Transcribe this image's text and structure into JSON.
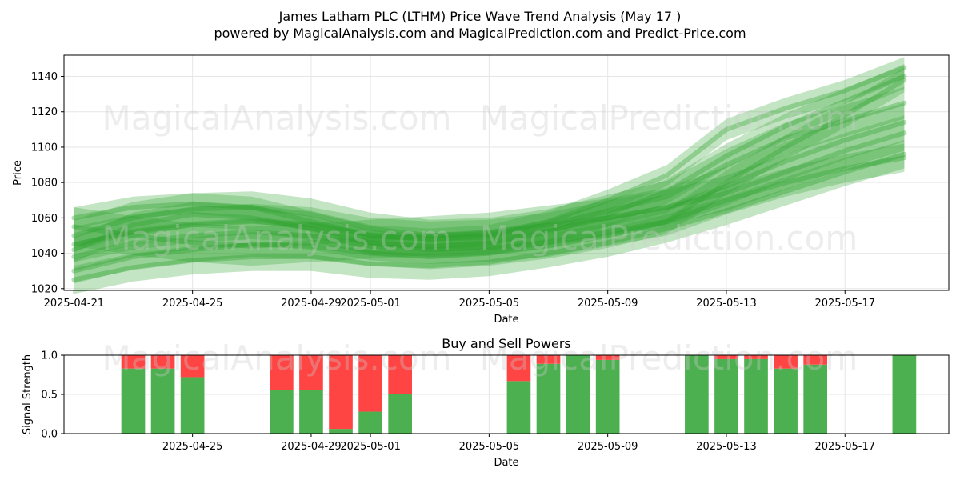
{
  "header": {
    "title": "James Latham PLC (LTHM) Price Wave Trend Analysis (May 17 )",
    "subtitle": "powered by MagicalAnalysis.com and MagicalPrediction.com and Predict-Price.com"
  },
  "watermarks": [
    "MagicalAnalysis.com",
    "MagicalPrediction.com"
  ],
  "colors": {
    "wave": "#2ca02c",
    "buy": "#4caf50",
    "sell": "#ff4444"
  },
  "chart_data": [
    {
      "type": "area",
      "xlabel": "Date",
      "ylabel": "Price",
      "xlim": [
        "2025-04-20T16:00",
        "2025-05-20T12:00"
      ],
      "ylim": [
        1019,
        1152
      ],
      "x_ticks": [
        "2025-04-21",
        "2025-04-25",
        "2025-04-29",
        "2025-05-01",
        "2025-05-05",
        "2025-05-09",
        "2025-05-13",
        "2025-05-17"
      ],
      "y_ticks": [
        1020,
        1040,
        1060,
        1080,
        1100,
        1120,
        1140
      ],
      "grid": true,
      "x": [
        "2025-04-21",
        "2025-04-23",
        "2025-04-25",
        "2025-04-27",
        "2025-04-29",
        "2025-05-01",
        "2025-05-03",
        "2025-05-05",
        "2025-05-07",
        "2025-05-09",
        "2025-05-11",
        "2025-05-13",
        "2025-05-15",
        "2025-05-17",
        "2025-05-19"
      ],
      "series": [
        {
          "values": [
            1038,
            1046,
            1050,
            1052,
            1050,
            1044,
            1042,
            1043,
            1046,
            1052,
            1058,
            1070,
            1080,
            1088,
            1094
          ],
          "width": 16
        },
        {
          "values": [
            1045,
            1052,
            1056,
            1058,
            1056,
            1050,
            1048,
            1049,
            1053,
            1060,
            1066,
            1074,
            1086,
            1098,
            1108
          ],
          "width": 20
        },
        {
          "values": [
            1030,
            1038,
            1042,
            1045,
            1044,
            1040,
            1038,
            1040,
            1044,
            1050,
            1058,
            1080,
            1100,
            1118,
            1138
          ],
          "width": 14
        },
        {
          "values": [
            1050,
            1060,
            1065,
            1066,
            1062,
            1054,
            1050,
            1051,
            1056,
            1064,
            1072,
            1090,
            1105,
            1115,
            1125
          ],
          "width": 18
        },
        {
          "values": [
            1025,
            1032,
            1036,
            1038,
            1038,
            1034,
            1033,
            1035,
            1040,
            1046,
            1054,
            1064,
            1075,
            1086,
            1096
          ],
          "width": 16
        },
        {
          "values": [
            1060,
            1066,
            1068,
            1066,
            1058,
            1050,
            1048,
            1050,
            1058,
            1070,
            1084,
            1110,
            1122,
            1132,
            1145
          ],
          "width": 12
        },
        {
          "values": [
            1042,
            1056,
            1062,
            1060,
            1054,
            1046,
            1044,
            1046,
            1052,
            1062,
            1075,
            1095,
            1112,
            1126,
            1140
          ],
          "width": 14
        },
        {
          "values": [
            1055,
            1050,
            1046,
            1044,
            1046,
            1048,
            1050,
            1052,
            1056,
            1060,
            1066,
            1078,
            1092,
            1104,
            1114
          ],
          "width": 22
        }
      ]
    },
    {
      "type": "bar",
      "title": "Buy and Sell Powers",
      "xlabel": "Date",
      "ylabel": "Signal Strength",
      "xlim": [
        "2025-04-20T16:00",
        "2025-05-20T12:00"
      ],
      "ylim": [
        0,
        1.0
      ],
      "x_ticks": [
        "2025-04-25",
        "2025-04-29",
        "2025-05-01",
        "2025-05-05",
        "2025-05-09",
        "2025-05-13",
        "2025-05-17"
      ],
      "y_ticks": [
        "0.0",
        "0.5",
        "1.0"
      ],
      "grid": true,
      "x": [
        "2025-04-23",
        "2025-04-24",
        "2025-04-25",
        "2025-04-28",
        "2025-04-29",
        "2025-04-30",
        "2025-05-01",
        "2025-05-02",
        "2025-05-06",
        "2025-05-07",
        "2025-05-08",
        "2025-05-09",
        "2025-05-12",
        "2025-05-13",
        "2025-05-14",
        "2025-05-15",
        "2025-05-16",
        "2025-05-19"
      ],
      "series": [
        {
          "name": "Buy",
          "values": [
            0.83,
            0.83,
            0.72,
            0.56,
            0.56,
            0.06,
            0.28,
            0.5,
            0.67,
            0.89,
            1.0,
            0.94,
            1.0,
            0.95,
            0.95,
            0.83,
            0.88,
            1.0
          ]
        },
        {
          "name": "Sell",
          "values": [
            0.17,
            0.17,
            0.28,
            0.44,
            0.44,
            0.94,
            0.72,
            0.5,
            0.33,
            0.11,
            0.0,
            0.06,
            0.0,
            0.05,
            0.05,
            0.17,
            0.12,
            0.0
          ]
        }
      ]
    }
  ]
}
